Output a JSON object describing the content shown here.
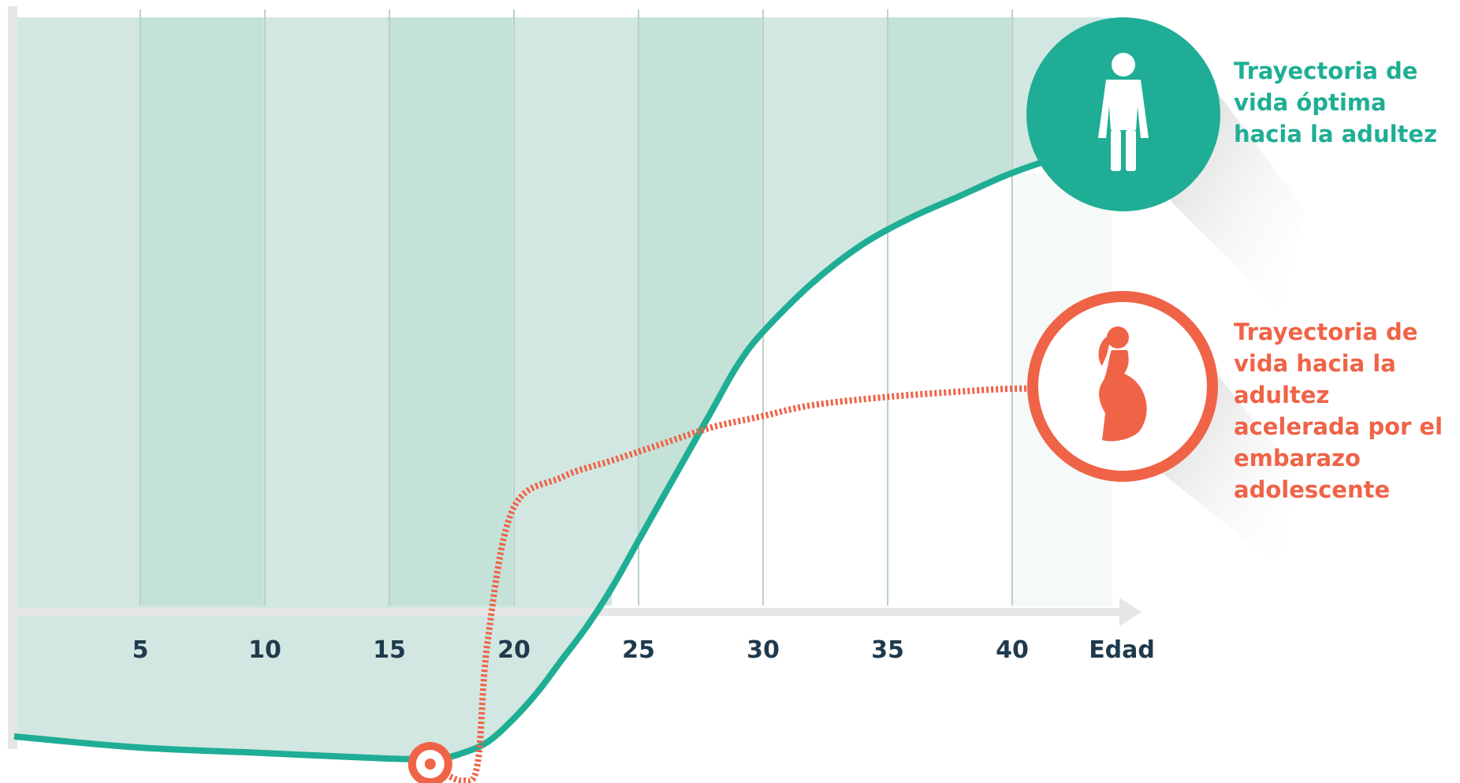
{
  "chart_data": {
    "type": "line",
    "x_ticks": [
      "5",
      "10",
      "15",
      "20",
      "25",
      "30",
      "35",
      "40",
      "Edad"
    ],
    "series": [
      {
        "name": "Trayectoria de vida óptima hacia la adultez",
        "color": "#1fae95",
        "style": "solid",
        "x": [
          0,
          5,
          10,
          15,
          17,
          18,
          19,
          20,
          21,
          22,
          23,
          24,
          25,
          26,
          27,
          28,
          29,
          30,
          32,
          34,
          36,
          38,
          40,
          42,
          44,
          45
        ],
        "y": [
          3,
          1,
          0,
          -1,
          -1,
          0,
          2,
          6,
          11,
          17,
          23,
          30,
          38,
          46,
          54,
          62,
          70,
          76,
          85,
          92,
          97,
          101,
          105,
          108,
          110,
          111
        ]
      },
      {
        "name": "Trayectoria de vida hacia la adultez acelerada por el embarazo adolescente",
        "color": "#ef6347",
        "style": "dashed",
        "x": [
          17,
          18,
          18.6,
          19,
          20,
          22,
          24,
          26,
          28,
          30,
          32,
          35,
          38,
          40,
          42,
          44
        ],
        "y": [
          -3,
          -5,
          -2,
          20,
          44,
          50,
          53,
          56,
          59,
          61,
          63,
          64.5,
          65.5,
          66,
          66,
          66
        ]
      }
    ],
    "marker": {
      "x": 16.7,
      "y": -2
    },
    "icons": {
      "optimal": "standing-woman-icon",
      "accelerated": "pregnant-woman-icon"
    },
    "colors": {
      "panel_dark": "#c5e2d9",
      "panel_light": "#d2e7e1",
      "grid": "#b9d2ca",
      "axis": "#e6e6e6",
      "tick_text": "#1f3a4d"
    }
  },
  "legend": {
    "optimal": "Trayectoria de vida óptima hacia la adultez",
    "accelerated": "Trayectoria de vida hacia la adultez acelerada por el embarazo adolescente"
  }
}
